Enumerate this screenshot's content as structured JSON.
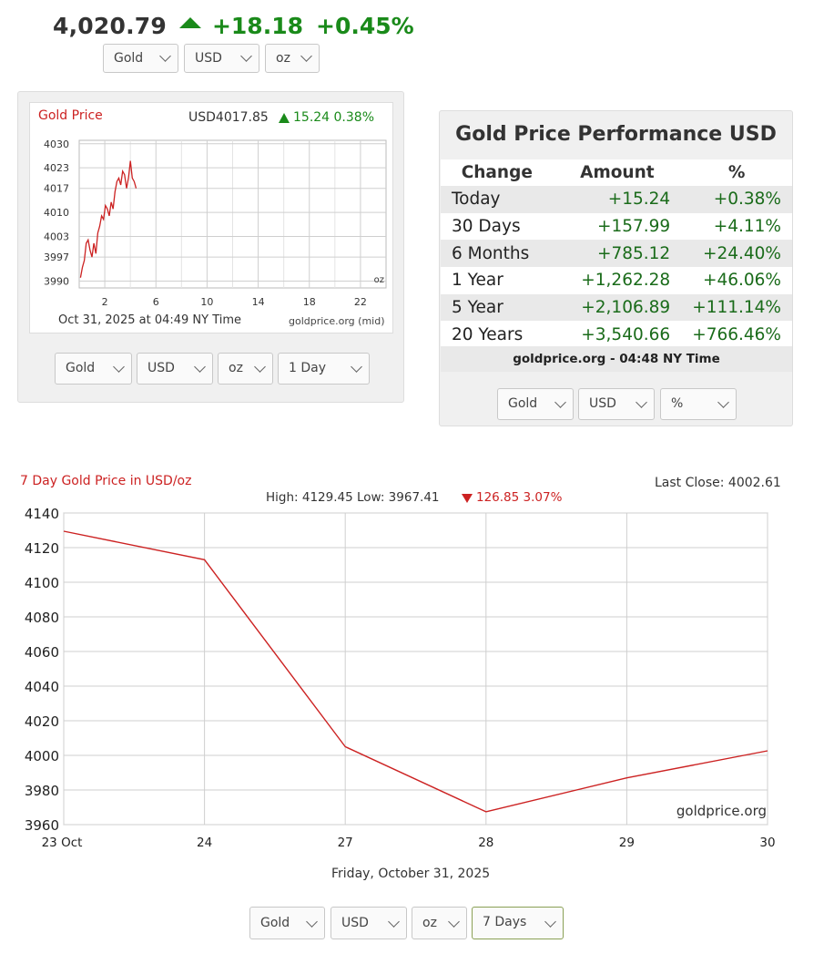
{
  "header": {
    "price": "4,020.79",
    "change": "+18.18",
    "change_pct": "+0.45%",
    "up_color": "#1a8a1a",
    "selectors": [
      "Gold",
      "USD",
      "oz"
    ]
  },
  "small_chart": {
    "title": "Gold Price",
    "price_label": "USD4017.85",
    "change_label": "15.24 0.38%",
    "timestamp": "Oct 31, 2025 at 04:49 NY Time",
    "source": "goldprice.org (mid)",
    "unit": "oz",
    "selectors": [
      "Gold",
      "USD",
      "oz",
      "1 Day"
    ]
  },
  "performance": {
    "title": "Gold Price Performance USD",
    "headers": [
      "Change",
      "Amount",
      "%"
    ],
    "rows": [
      {
        "label": "Today",
        "amount": "+15.24",
        "pct": "+0.38%"
      },
      {
        "label": "30 Days",
        "amount": "+157.99",
        "pct": "+4.11%"
      },
      {
        "label": "6 Months",
        "amount": "+785.12",
        "pct": "+24.40%"
      },
      {
        "label": "1 Year",
        "amount": "+1,262.28",
        "pct": "+46.06%"
      },
      {
        "label": "5 Year",
        "amount": "+2,106.89",
        "pct": "+111.14%"
      },
      {
        "label": "20 Years",
        "amount": "+3,540.66",
        "pct": "+766.46%"
      }
    ],
    "footer": "goldprice.org - 04:48 NY Time",
    "selectors": [
      "Gold",
      "USD",
      "%"
    ]
  },
  "big_chart_meta": {
    "last_close": "Last Close: 4002.61",
    "hl_prefix": "High: 4129.45 Low: 3967.41",
    "hl_change": "126.85 3.07%",
    "footer_date": "Friday, October 31, 2025",
    "watermark": "goldprice.org",
    "down_color": "#cc2222",
    "selectors": [
      "Gold",
      "USD",
      "oz",
      "7 Days"
    ]
  },
  "chart_data": [
    {
      "type": "line",
      "title": "Gold Price",
      "xlabel": "",
      "ylabel": "",
      "x_ticks": [
        "2",
        "6",
        "10",
        "14",
        "18",
        "22"
      ],
      "xlim": [
        0,
        24
      ],
      "y_ticks": [
        "4030",
        "4023",
        "4017",
        "4010",
        "4003",
        "3997",
        "3990"
      ],
      "ylim": [
        3988,
        4031
      ],
      "grid": true,
      "line_color": "#cc2222",
      "series": [
        {
          "name": "USD/oz (mid)",
          "x": [
            0.1,
            0.25,
            0.4,
            0.55,
            0.7,
            0.85,
            1.0,
            1.15,
            1.3,
            1.45,
            1.6,
            1.75,
            1.9,
            2.05,
            2.2,
            2.35,
            2.5,
            2.65,
            2.8,
            2.95,
            3.1,
            3.25,
            3.4,
            3.55,
            3.7,
            3.85,
            4.0,
            4.15,
            4.3,
            4.45
          ],
          "values": [
            3991,
            3994,
            3996,
            4001,
            4002,
            3999,
            3997,
            4001,
            3998,
            4004,
            4006,
            4009,
            4008,
            4012,
            4011,
            4009,
            4013,
            4011,
            4016,
            4019,
            4020,
            4018,
            4022,
            4021,
            4017,
            4020,
            4025,
            4020,
            4019,
            4017
          ]
        }
      ]
    },
    {
      "type": "line",
      "title": "7 Day Gold Price in USD/oz",
      "xlabel": "",
      "ylabel": "",
      "categories": [
        "23 Oct",
        "24",
        "27",
        "28",
        "29",
        "30"
      ],
      "ylim": [
        3960,
        4140
      ],
      "y_ticks": [
        "4140",
        "4120",
        "4100",
        "4080",
        "4060",
        "4040",
        "4020",
        "4000",
        "3980",
        "3960"
      ],
      "grid": true,
      "line_color": "#cc2222",
      "series": [
        {
          "name": "USD/oz",
          "values": [
            4129.45,
            4113,
            4005,
            3967.41,
            3987,
            4002.61
          ]
        }
      ]
    }
  ]
}
